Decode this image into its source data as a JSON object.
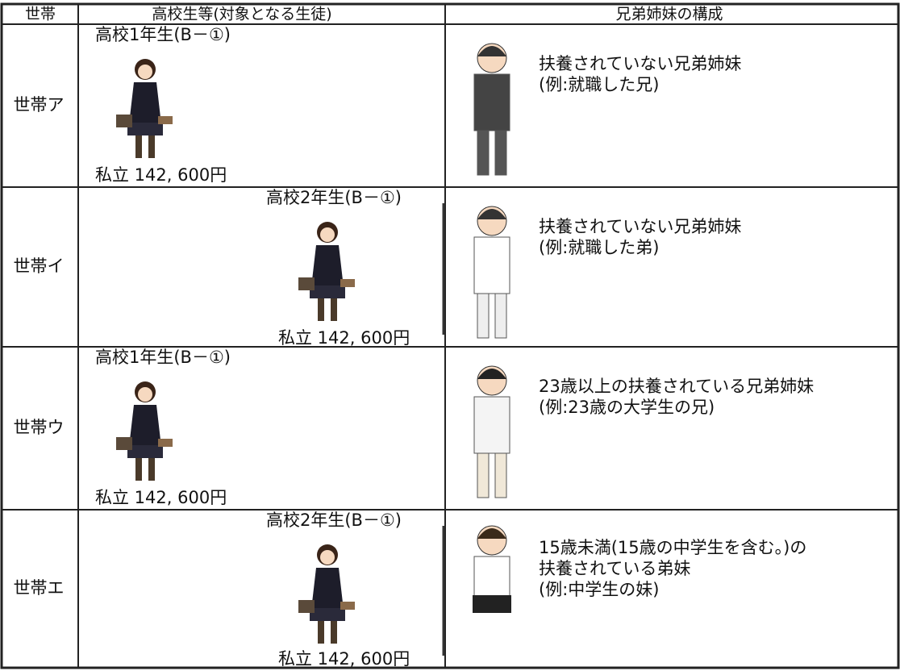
{
  "table": {
    "header": [
      "世帯",
      "高校生等(対象となる生徒)",
      "兄弟姉妹の構成"
    ],
    "rows": [
      {
        "household": "世帯ア",
        "student": "高校1年生(B－①)",
        "tuition": "私立 142, 600円",
        "sibling": [
          "扶養されていない兄弟姉妹",
          "(例:就職した兄)"
        ]
      },
      {
        "household": "世帯イ",
        "student": "高校2年生(B－①)",
        "tuition": "私立 142, 600円",
        "sibling": [
          "扶養されていない兄弟姉妹",
          "(例:就職した弟)"
        ]
      },
      {
        "household": "世帯ウ",
        "student": "高校1年生(B－①)",
        "tuition": "私立 142, 600円",
        "sibling": [
          "23歳以上の扶養されている兄弟姉妹",
          "(例:23歳の大学生の兄)"
        ]
      },
      {
        "household": "世帯エ",
        "student": "高校2年生(B－①)",
        "tuition": "私立 142, 600円",
        "sibling": [
          "15歳未満(15歳の中学生を含む。)の",
          "扶養されている弟妹",
          "(例:中学生の妹)"
        ]
      }
    ]
  }
}
